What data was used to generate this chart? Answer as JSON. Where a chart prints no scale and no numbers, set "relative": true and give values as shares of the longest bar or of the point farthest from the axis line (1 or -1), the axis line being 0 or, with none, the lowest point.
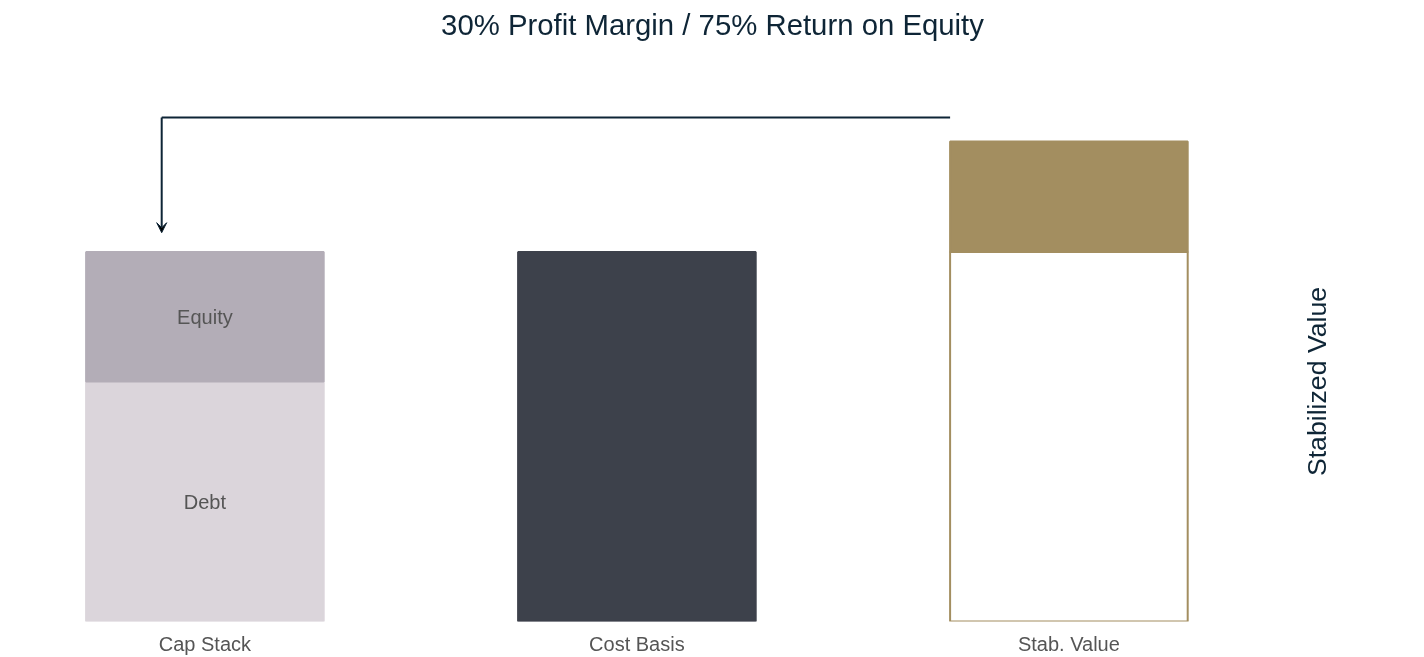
{
  "chart_data": {
    "type": "bar",
    "title": "30% Profit Margin / 75% Return on Equity",
    "categories": [
      "Cap Stack",
      "Cost Basis",
      "Stab. Value"
    ],
    "relative": true,
    "stacked": true,
    "grid": false,
    "series": [
      {
        "name": "Debt",
        "color": "#dbd5db",
        "values": [
          0.5,
          null,
          null
        ]
      },
      {
        "name": "Equity",
        "color": "#b3adb7",
        "values": [
          0.27,
          null,
          null
        ]
      },
      {
        "color": "#3d414b",
        "values": [
          null,
          0.77,
          null
        ]
      },
      {
        "color": "#a38e60",
        "colors": [
          null,
          null,
          "#ffffff"
        ],
        "values": [
          null,
          null,
          0.77
        ]
      },
      {
        "color": "#a38e60",
        "values": [
          null,
          null,
          0.23
        ]
      }
    ],
    "annotations": [
      "Stabilized Value"
    ]
  }
}
